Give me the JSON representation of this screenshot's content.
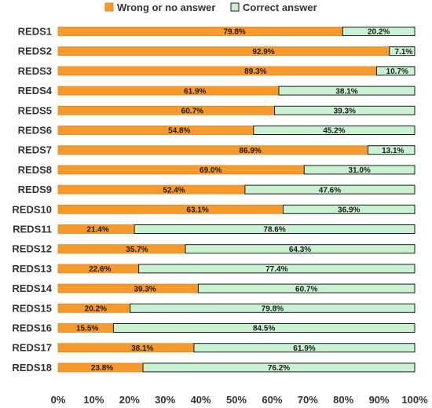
{
  "chart_data": {
    "type": "bar",
    "orientation": "horizontal",
    "stacked": true,
    "categories": [
      "REDS1",
      "REDS2",
      "REDS3",
      "REDS4",
      "REDS5",
      "REDS6",
      "REDS7",
      "REDS8",
      "REDS9",
      "REDS10",
      "REDS11",
      "REDS12",
      "REDS13",
      "REDS14",
      "REDS15",
      "REDS16",
      "REDS17",
      "REDS18"
    ],
    "series": [
      {
        "name": "Wrong or no answer",
        "color": "#F79A2E",
        "values": [
          79.8,
          92.9,
          89.3,
          61.9,
          60.7,
          54.8,
          86.9,
          69.0,
          52.4,
          63.1,
          21.4,
          35.7,
          22.6,
          39.3,
          20.2,
          15.5,
          38.1,
          23.8
        ],
        "labels": [
          "79.8%",
          "92.9%",
          "89.3%",
          "61.9%",
          "60.7%",
          "54.8%",
          "86.9%",
          "69.0%",
          "52.4%",
          "63.1%",
          "21.4%",
          "35.7%",
          "22.6%",
          "39.3%",
          "20.2%",
          "15.5%",
          "38.1%",
          "23.8%"
        ]
      },
      {
        "name": "Correct answer",
        "color": "#C9F2D3",
        "values": [
          20.2,
          7.1,
          10.7,
          38.1,
          39.3,
          45.2,
          13.1,
          31.0,
          47.6,
          36.9,
          78.6,
          64.3,
          77.4,
          60.7,
          79.8,
          84.5,
          61.9,
          76.2
        ],
        "labels": [
          "20.2%",
          "7.1%",
          "10.7%",
          "38.1%",
          "39.3%",
          "45.2%",
          "13.1%",
          "31.0%",
          "47.6%",
          "36.9%",
          "78.6%",
          "64.3%",
          "77.4%",
          "60.7%",
          "79.8%",
          "84.5%",
          "61.9%",
          "76.2%"
        ]
      }
    ],
    "xlim": [
      0,
      100
    ],
    "x_ticks": [
      "0%",
      "10%",
      "20%",
      "30%",
      "40%",
      "50%",
      "60%",
      "70%",
      "80%",
      "90%",
      "100%"
    ],
    "legend_position": "top",
    "grid": false
  }
}
